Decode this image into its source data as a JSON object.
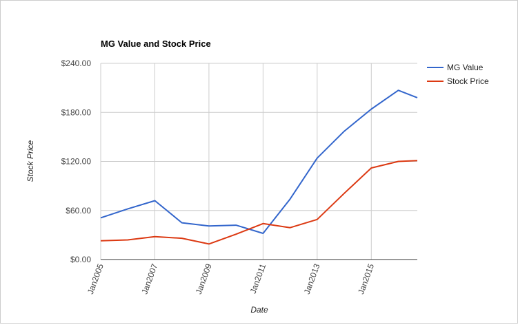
{
  "chart_data": {
    "type": "line",
    "title": "MG Value and Stock Price",
    "xlabel": "Date",
    "ylabel": "Stock Price",
    "x_ticks": [
      "Jan2005",
      "Jan2007",
      "Jan2009",
      "Jan2011",
      "Jan2013",
      "Jan2015"
    ],
    "x_tick_years": [
      2005,
      2007,
      2009,
      2011,
      2013,
      2015
    ],
    "xlim": [
      2005,
      2016.7
    ],
    "y_ticks": [
      "$0.00",
      "$60.00",
      "$120.00",
      "$180.00",
      "$240.00"
    ],
    "y_tick_values": [
      0,
      60,
      120,
      180,
      240
    ],
    "ylim": [
      0,
      240
    ],
    "grid": true,
    "legend_position": "right",
    "x": [
      2005,
      2006,
      2007,
      2008,
      2009,
      2010,
      2011,
      2012,
      2013,
      2014,
      2015,
      2016,
      2016.7
    ],
    "series": [
      {
        "name": "MG Value",
        "color": "#3366cc",
        "values": [
          51,
          62,
          72,
          45,
          41,
          42,
          32,
          74,
          124,
          157,
          184,
          207,
          198
        ]
      },
      {
        "name": "Stock Price",
        "color": "#dc3912",
        "values": [
          23,
          24,
          28,
          26,
          19,
          31,
          44,
          39,
          49,
          81,
          112,
          120,
          121
        ]
      }
    ]
  }
}
